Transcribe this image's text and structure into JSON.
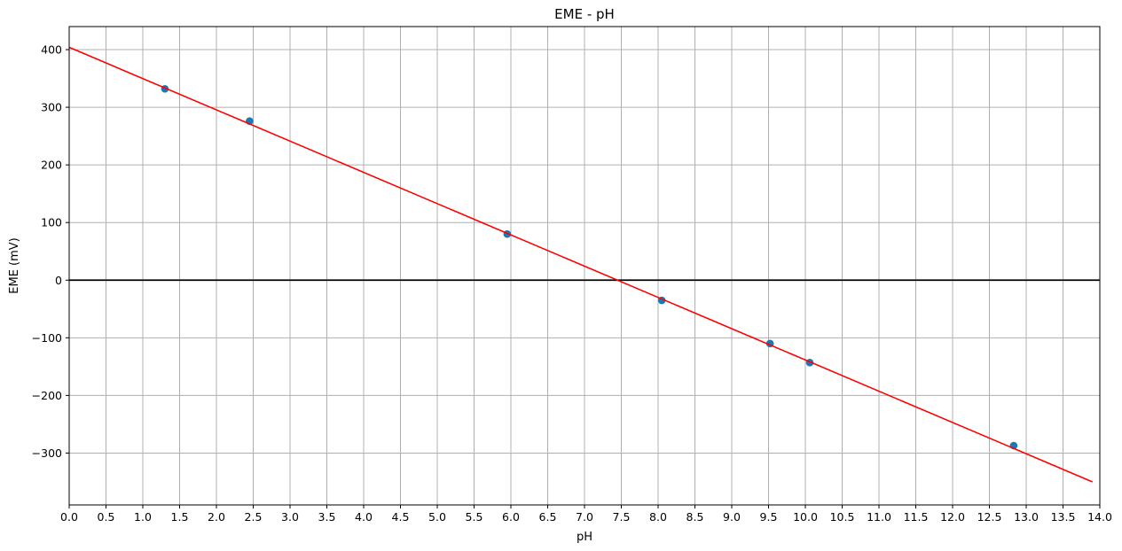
{
  "chart_data": {
    "type": "scatter",
    "title": "EME - pH",
    "xlabel": "pH",
    "ylabel": "EME (mV)",
    "xlim": [
      0,
      14
    ],
    "ylim": [
      -390,
      440
    ],
    "x_ticks": [
      0,
      0.5,
      1,
      1.5,
      2,
      2.5,
      3,
      3.5,
      4,
      4.5,
      5,
      5.5,
      6,
      6.5,
      7,
      7.5,
      8,
      8.5,
      9,
      9.5,
      10,
      10.5,
      11,
      11.5,
      12,
      12.5,
      13,
      13.5,
      14
    ],
    "x_tick_labels": [
      "0.0",
      "0.5",
      "1.0",
      "1.5",
      "2.0",
      "2.5",
      "3.0",
      "3.5",
      "4.0",
      "4.5",
      "5.0",
      "5.5",
      "6.0",
      "6.5",
      "7.0",
      "7.5",
      "8.0",
      "8.5",
      "9.0",
      "9.5",
      "10.0",
      "10.5",
      "11.0",
      "11.5",
      "12.0",
      "12.5",
      "13.0",
      "13.5",
      "14.0"
    ],
    "y_ticks": [
      -300,
      -200,
      -100,
      0,
      100,
      200,
      300,
      400
    ],
    "y_tick_labels": [
      "−300",
      "−200",
      "−100",
      "0",
      "100",
      "200",
      "300",
      "400"
    ],
    "grid": true,
    "series": [
      {
        "kind": "scatter",
        "color": "#1f77b4",
        "x": [
          1.3,
          2.45,
          5.95,
          8.05,
          9.52,
          10.06,
          12.83
        ],
        "y": [
          332,
          276,
          80,
          -35,
          -110,
          -143,
          -287
        ]
      },
      {
        "kind": "line",
        "color": "#ff0000",
        "x": [
          0,
          13.9
        ],
        "y": [
          404,
          -350
        ]
      }
    ],
    "reference_line": {
      "axis": "y",
      "value": 0,
      "color": "#000000"
    }
  }
}
